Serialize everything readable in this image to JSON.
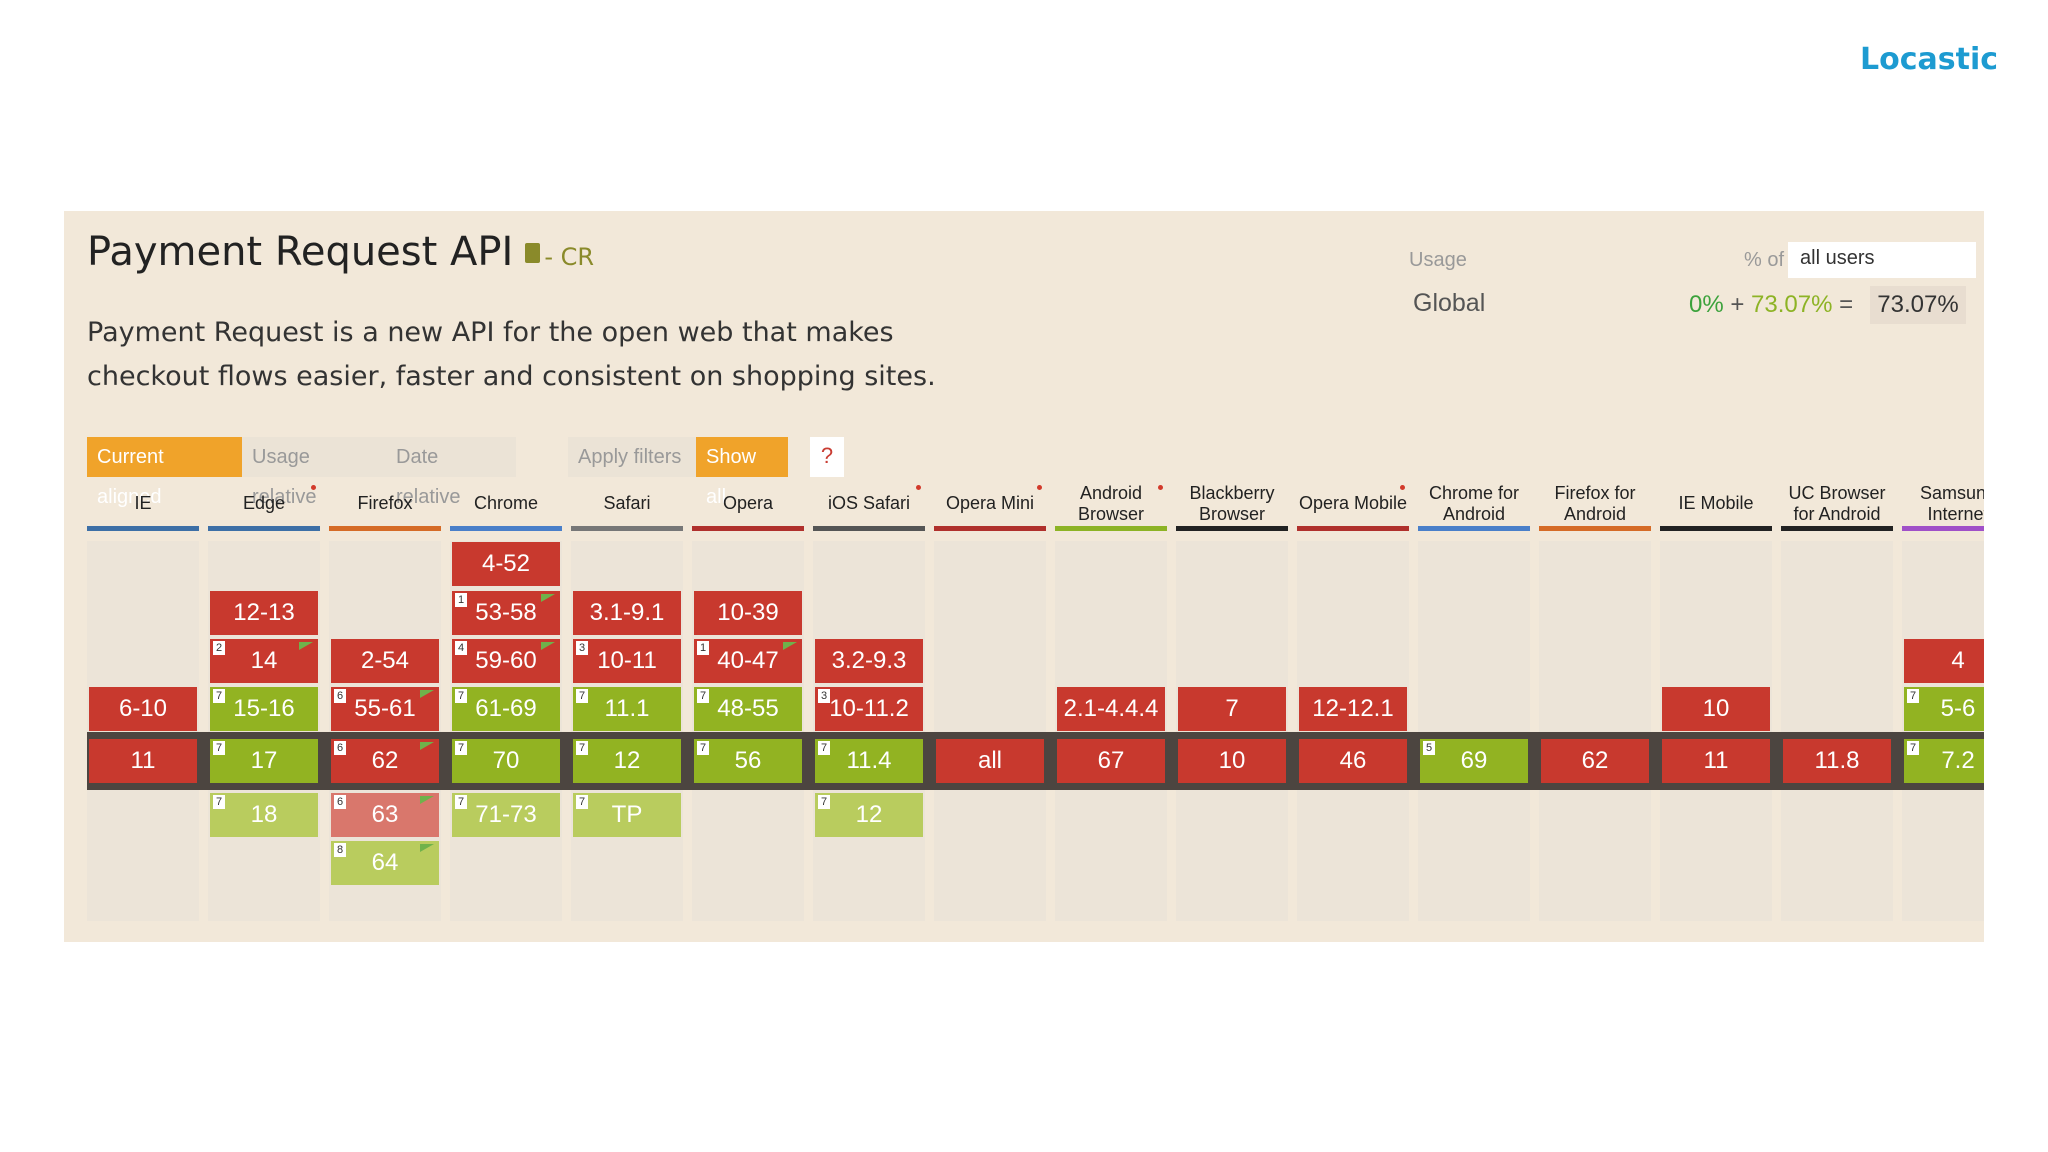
{
  "brand": "Locastic",
  "feature": {
    "title": "Payment Request API",
    "spec_status": "- CR",
    "description": "Payment Request is a new API for the open web that makes checkout flows easier, faster and consistent on shopping sites."
  },
  "usage": {
    "label": "Usage",
    "pct_of_label": "% of",
    "user_filter": "all users",
    "region": "Global",
    "supported": "0%",
    "plus": "+",
    "partial": "73.07%",
    "equals": "=",
    "total": "73.07%"
  },
  "toolbar": {
    "current_aligned": "Current aligned",
    "usage_relative": "Usage relative",
    "date_relative": "Date relative",
    "apply_filters": "Apply filters",
    "show_all": "Show all",
    "help": "?"
  },
  "colors": {
    "unsupported": "#c8392e",
    "supported": "#92b322",
    "accent": "#f0a32a",
    "brand": "#1d9bd1"
  },
  "browsers": [
    {
      "name": "IE",
      "color": "#3d6fa6",
      "dot": false,
      "cells": [
        {
          "slot": 3,
          "label": "6-10",
          "s": "r"
        },
        {
          "slot": 4,
          "label": "11",
          "s": "r"
        }
      ]
    },
    {
      "name": "Edge",
      "color": "#3d6fa6",
      "dot": true,
      "cells": [
        {
          "slot": 1,
          "label": "12-13",
          "s": "r"
        },
        {
          "slot": 2,
          "label": "14",
          "s": "r",
          "note": "2",
          "flag": true
        },
        {
          "slot": 3,
          "label": "15-16",
          "s": "g",
          "note": "7"
        },
        {
          "slot": 4,
          "label": "17",
          "s": "g",
          "note": "7"
        },
        {
          "slot": 5,
          "label": "18",
          "s": "gy",
          "note": "7"
        }
      ]
    },
    {
      "name": "Firefox",
      "color": "#d56b27",
      "dot": false,
      "cells": [
        {
          "slot": 2,
          "label": "2-54",
          "s": "r"
        },
        {
          "slot": 3,
          "label": "55-61",
          "s": "r",
          "note": "6",
          "flag": true
        },
        {
          "slot": 4,
          "label": "62",
          "s": "r",
          "note": "6",
          "flag": true
        },
        {
          "slot": 5,
          "label": "63",
          "s": "ry",
          "note": "6",
          "flag": true
        },
        {
          "slot": 6,
          "label": "64",
          "s": "gy",
          "note": "8",
          "flag": true
        }
      ]
    },
    {
      "name": "Chrome",
      "color": "#4a7fc9",
      "dot": false,
      "cells": [
        {
          "slot": 0,
          "label": "4-52",
          "s": "r"
        },
        {
          "slot": 1,
          "label": "53-58",
          "s": "r",
          "note": "1",
          "flag": true
        },
        {
          "slot": 2,
          "label": "59-60",
          "s": "r",
          "note": "4",
          "flag": true
        },
        {
          "slot": 3,
          "label": "61-69",
          "s": "g",
          "note": "7"
        },
        {
          "slot": 4,
          "label": "70",
          "s": "g",
          "note": "7"
        },
        {
          "slot": 5,
          "label": "71-73",
          "s": "gy",
          "note": "7"
        }
      ]
    },
    {
      "name": "Safari",
      "color": "#777777",
      "dot": false,
      "cells": [
        {
          "slot": 1,
          "label": "3.1-9.1",
          "s": "r"
        },
        {
          "slot": 2,
          "label": "10-11",
          "s": "r",
          "note": "3"
        },
        {
          "slot": 3,
          "label": "11.1",
          "s": "g",
          "note": "7"
        },
        {
          "slot": 4,
          "label": "12",
          "s": "g",
          "note": "7"
        },
        {
          "slot": 5,
          "label": "TP",
          "s": "gy",
          "note": "7"
        }
      ]
    },
    {
      "name": "Opera",
      "color": "#b0302c",
      "dot": false,
      "cells": [
        {
          "slot": 1,
          "label": "10-39",
          "s": "r"
        },
        {
          "slot": 2,
          "label": "40-47",
          "s": "r",
          "note": "1",
          "flag": true
        },
        {
          "slot": 3,
          "label": "48-55",
          "s": "g",
          "note": "7"
        },
        {
          "slot": 4,
          "label": "56",
          "s": "g",
          "note": "7"
        }
      ]
    },
    {
      "name": "iOS Safari",
      "color": "#555555",
      "dot": true,
      "cells": [
        {
          "slot": 2,
          "label": "3.2-9.3",
          "s": "r"
        },
        {
          "slot": 3,
          "label": "10-11.2",
          "s": "r",
          "note": "3"
        },
        {
          "slot": 4,
          "label": "11.4",
          "s": "g",
          "note": "7"
        },
        {
          "slot": 5,
          "label": "12",
          "s": "gy",
          "note": "7"
        }
      ]
    },
    {
      "name": "Opera Mini",
      "color": "#b0302c",
      "dot": true,
      "cells": [
        {
          "slot": 4,
          "label": "all",
          "s": "r"
        }
      ]
    },
    {
      "name": "Android Browser",
      "color": "#8db325",
      "dot": true,
      "cells": [
        {
          "slot": 3,
          "label": "2.1-4.4.4",
          "s": "r"
        },
        {
          "slot": 4,
          "label": "67",
          "s": "r"
        }
      ]
    },
    {
      "name": "Blackberry Browser",
      "color": "#222222",
      "dot": false,
      "cells": [
        {
          "slot": 3,
          "label": "7",
          "s": "r"
        },
        {
          "slot": 4,
          "label": "10",
          "s": "r"
        }
      ]
    },
    {
      "name": "Opera Mobile",
      "color": "#b0302c",
      "dot": true,
      "cells": [
        {
          "slot": 3,
          "label": "12-12.1",
          "s": "r"
        },
        {
          "slot": 4,
          "label": "46",
          "s": "r"
        }
      ]
    },
    {
      "name": "Chrome for Android",
      "color": "#4a7fc9",
      "dot": false,
      "cells": [
        {
          "slot": 4,
          "label": "69",
          "s": "g",
          "note": "5"
        }
      ]
    },
    {
      "name": "Firefox for Android",
      "color": "#d56b27",
      "dot": false,
      "cells": [
        {
          "slot": 4,
          "label": "62",
          "s": "r"
        }
      ]
    },
    {
      "name": "IE Mobile",
      "color": "#222222",
      "dot": false,
      "cells": [
        {
          "slot": 3,
          "label": "10",
          "s": "r"
        },
        {
          "slot": 4,
          "label": "11",
          "s": "r"
        }
      ]
    },
    {
      "name": "UC Browser for Android",
      "color": "#222222",
      "dot": false,
      "cells": [
        {
          "slot": 4,
          "label": "11.8",
          "s": "r"
        }
      ]
    },
    {
      "name": "Samsung Internet",
      "color": "#a050c8",
      "dot": false,
      "cells": [
        {
          "slot": 2,
          "label": "4",
          "s": "r"
        },
        {
          "slot": 3,
          "label": "5-6",
          "s": "g",
          "note": "7"
        },
        {
          "slot": 4,
          "label": "7.2",
          "s": "g",
          "note": "7"
        }
      ]
    }
  ]
}
